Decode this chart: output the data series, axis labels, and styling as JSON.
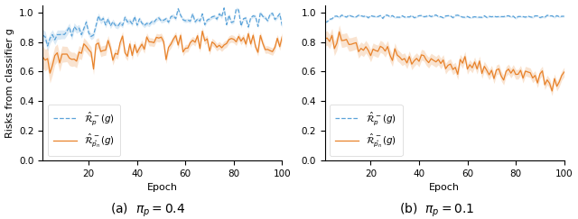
{
  "figsize": [
    6.4,
    2.43
  ],
  "dpi": 100,
  "blue_color": "#5BA3D9",
  "orange_color": "#E8822A",
  "blue_fill_alpha": 0.22,
  "orange_fill_alpha": 0.22,
  "xlabel": "Epoch",
  "ylabel": "Risks from classifier g",
  "xlim": [
    1,
    100
  ],
  "ylim": [
    0.0,
    1.05
  ],
  "yticks": [
    0.0,
    0.2,
    0.4,
    0.6,
    0.8,
    1.0
  ],
  "xticks": [
    20,
    40,
    60,
    80,
    100
  ],
  "legend_label_blue": "$\\hat{\\mathcal{R}}^-_p(g)$",
  "legend_label_orange": "$\\hat{\\mathcal{R}}^-_{\\hat{p}_n}(g)$",
  "caption_a": "(a)  $\\pi_p = 0.4$",
  "caption_b": "(b)  $\\pi_p = 0.1$",
  "n_epochs": 100
}
